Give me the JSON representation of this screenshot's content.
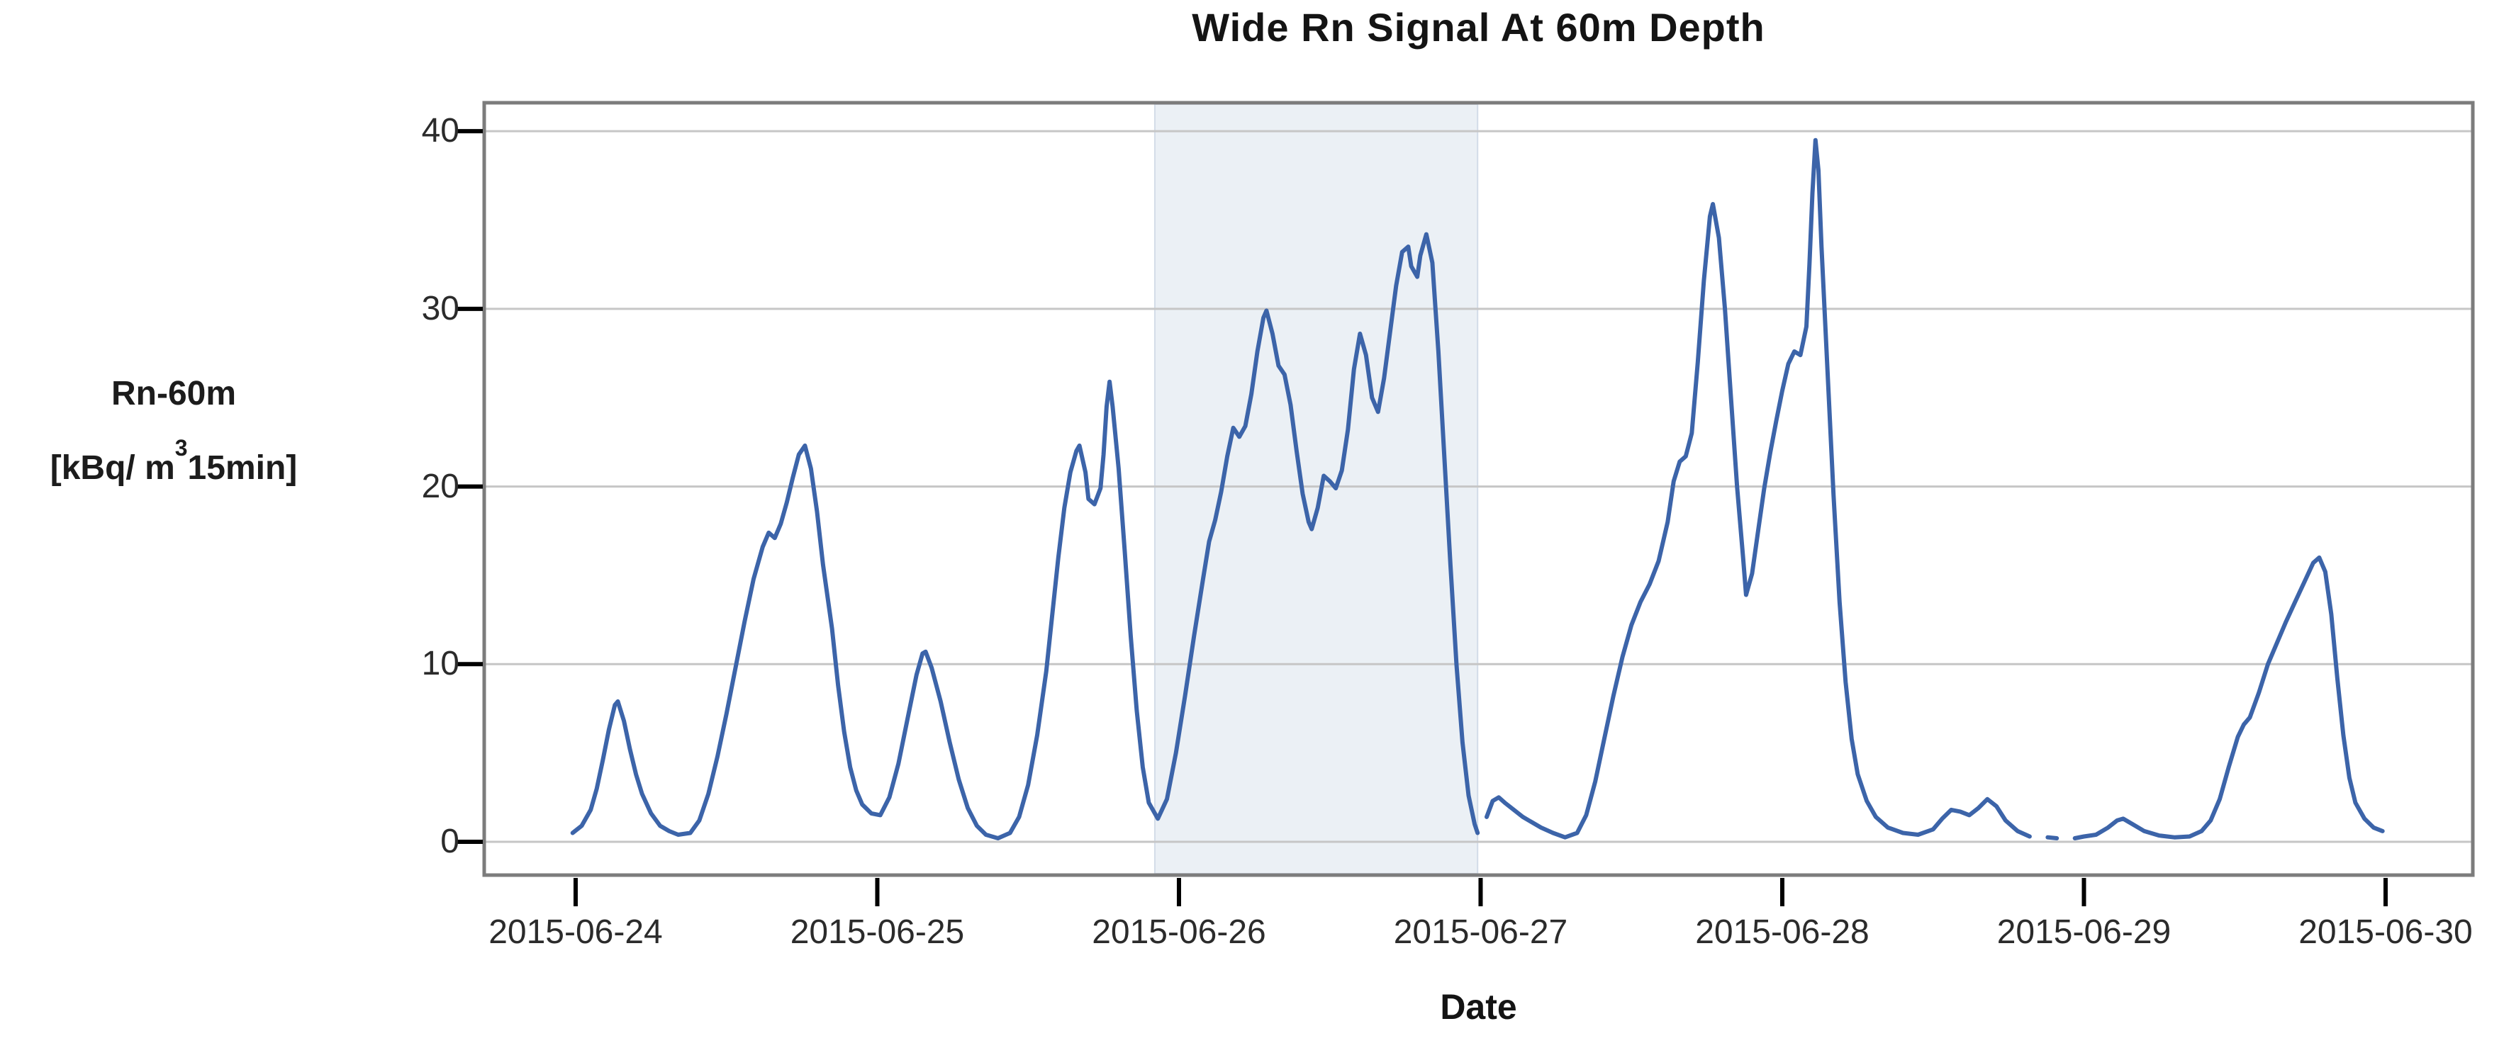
{
  "page": {
    "background": "#ffffff"
  },
  "chart": {
    "title": "Wide Rn Signal At 60m Depth",
    "x_axis_label": "Date",
    "y_axis_label_line1": "Rn-60m",
    "y_axis_unit_prefix": "[kBq/ m",
    "y_axis_unit_sup": "3",
    "y_axis_unit_suffix": "15min]"
  },
  "chart_data": {
    "type": "line",
    "title": "Wide Rn Signal At 60m Depth",
    "xlabel": "Date",
    "ylabel": "Rn-60m [kBq/ m^3 15min]",
    "x_unit": "days after 2015-06-24 00:00",
    "x_range_days": [
      -0.3031,
      6.2891
    ],
    "ylim": [
      -1.875,
      41.602
    ],
    "y_ticks": [
      0,
      10,
      20,
      30,
      40
    ],
    "x_ticks": [
      {
        "day": 0,
        "label": "2015-06-24"
      },
      {
        "day": 1,
        "label": "2015-06-25"
      },
      {
        "day": 2,
        "label": "2015-06-26"
      },
      {
        "day": 3,
        "label": "2015-06-27"
      },
      {
        "day": 4,
        "label": "2015-06-28"
      },
      {
        "day": 5,
        "label": "2015-06-29"
      },
      {
        "day": 6,
        "label": "2015-06-30"
      }
    ],
    "grid": "horizontal",
    "legend": "none",
    "highlight_band": {
      "from_day": 1.92,
      "to_day": 2.99,
      "fill": "#ebf0f5",
      "edge": "#d3dce8"
    },
    "colors": {
      "line": "#3c64a9",
      "grid": "#c6c6c6",
      "plot_border": "#7c7c7c",
      "tick": "#000000",
      "text": "#2b2b2b"
    },
    "series": [
      {
        "name": "Rn-60m",
        "color": "#3c64a9",
        "points": [
          [
            -0.01,
            0.5
          ],
          [
            0.02,
            0.9
          ],
          [
            0.05,
            1.8
          ],
          [
            0.07,
            3.0
          ],
          [
            0.09,
            4.6
          ],
          [
            0.11,
            6.3
          ],
          [
            0.13,
            7.7
          ],
          [
            0.14,
            7.9
          ],
          [
            0.16,
            6.8
          ],
          [
            0.18,
            5.2
          ],
          [
            0.2,
            3.8
          ],
          [
            0.22,
            2.7
          ],
          [
            0.25,
            1.6
          ],
          [
            0.28,
            0.9
          ],
          [
            0.31,
            0.6
          ],
          [
            0.34,
            0.4
          ],
          [
            0.38,
            0.5
          ],
          [
            0.41,
            1.2
          ],
          [
            0.44,
            2.7
          ],
          [
            0.47,
            4.8
          ],
          [
            0.5,
            7.2
          ],
          [
            0.53,
            9.8
          ],
          [
            0.56,
            12.4
          ],
          [
            0.59,
            14.8
          ],
          [
            0.62,
            16.6
          ],
          [
            0.64,
            17.4
          ],
          [
            0.66,
            17.1
          ],
          [
            0.68,
            17.9
          ],
          [
            0.7,
            19.1
          ],
          [
            0.72,
            20.5
          ],
          [
            0.74,
            21.8
          ],
          [
            0.76,
            22.3
          ],
          [
            0.78,
            21.0
          ],
          [
            0.8,
            18.6
          ],
          [
            0.82,
            15.6
          ],
          [
            0.85,
            12.0
          ],
          [
            0.87,
            8.8
          ],
          [
            0.89,
            6.2
          ],
          [
            0.91,
            4.2
          ],
          [
            0.93,
            2.9
          ],
          [
            0.95,
            2.1
          ],
          [
            0.98,
            1.6
          ],
          [
            1.01,
            1.5
          ],
          [
            1.04,
            2.5
          ],
          [
            1.07,
            4.4
          ],
          [
            1.1,
            6.9
          ],
          [
            1.13,
            9.4
          ],
          [
            1.15,
            10.6
          ],
          [
            1.16,
            10.7
          ],
          [
            1.18,
            9.8
          ],
          [
            1.21,
            7.9
          ],
          [
            1.24,
            5.6
          ],
          [
            1.27,
            3.5
          ],
          [
            1.3,
            1.9
          ],
          [
            1.33,
            0.9
          ],
          [
            1.36,
            0.4
          ],
          [
            1.4,
            0.2
          ],
          [
            1.44,
            0.5
          ],
          [
            1.47,
            1.4
          ],
          [
            1.5,
            3.2
          ],
          [
            1.53,
            6.0
          ],
          [
            1.56,
            9.6
          ],
          [
            1.58,
            12.8
          ],
          [
            1.6,
            16.0
          ],
          [
            1.62,
            18.8
          ],
          [
            1.64,
            20.8
          ],
          [
            1.66,
            22.0
          ],
          [
            1.67,
            22.3
          ],
          [
            1.69,
            20.8
          ],
          [
            1.7,
            19.3
          ],
          [
            1.72,
            19.0
          ],
          [
            1.74,
            19.9
          ],
          [
            1.75,
            21.8
          ],
          [
            1.76,
            24.5
          ],
          [
            1.77,
            25.9
          ],
          [
            1.78,
            24.5
          ],
          [
            1.8,
            21.0
          ],
          [
            1.82,
            16.4
          ],
          [
            1.84,
            11.6
          ],
          [
            1.86,
            7.4
          ],
          [
            1.88,
            4.2
          ],
          [
            1.9,
            2.2
          ],
          [
            1.93,
            1.3
          ],
          [
            1.96,
            2.4
          ],
          [
            1.99,
            5.0
          ],
          [
            2.02,
            8.2
          ],
          [
            2.05,
            11.6
          ],
          [
            2.08,
            14.8
          ],
          [
            2.1,
            16.9
          ],
          [
            2.12,
            18.1
          ],
          [
            2.14,
            19.7
          ],
          [
            2.16,
            21.7
          ],
          [
            2.18,
            23.3
          ],
          [
            2.2,
            22.8
          ],
          [
            2.22,
            23.4
          ],
          [
            2.24,
            25.2
          ],
          [
            2.26,
            27.6
          ],
          [
            2.28,
            29.5
          ],
          [
            2.29,
            29.9
          ],
          [
            2.31,
            28.6
          ],
          [
            2.33,
            26.8
          ],
          [
            2.35,
            26.3
          ],
          [
            2.37,
            24.6
          ],
          [
            2.39,
            22.0
          ],
          [
            2.41,
            19.6
          ],
          [
            2.43,
            18.0
          ],
          [
            2.44,
            17.6
          ],
          [
            2.46,
            18.8
          ],
          [
            2.48,
            20.6
          ],
          [
            2.5,
            20.3
          ],
          [
            2.52,
            19.9
          ],
          [
            2.54,
            20.9
          ],
          [
            2.56,
            23.2
          ],
          [
            2.58,
            26.6
          ],
          [
            2.6,
            28.6
          ],
          [
            2.62,
            27.4
          ],
          [
            2.64,
            25.0
          ],
          [
            2.66,
            24.2
          ],
          [
            2.68,
            26.1
          ],
          [
            2.7,
            28.7
          ],
          [
            2.72,
            31.3
          ],
          [
            2.74,
            33.2
          ],
          [
            2.76,
            33.5
          ],
          [
            2.77,
            32.4
          ],
          [
            2.79,
            31.8
          ],
          [
            2.8,
            33.0
          ],
          [
            2.82,
            34.2
          ],
          [
            2.84,
            32.6
          ],
          [
            2.86,
            27.6
          ],
          [
            2.88,
            21.6
          ],
          [
            2.9,
            15.6
          ],
          [
            2.92,
            10.0
          ],
          [
            2.94,
            5.6
          ],
          [
            2.96,
            2.6
          ],
          [
            2.98,
            1.0
          ],
          [
            2.99,
            0.5
          ],
          [
            3.005,
            null
          ],
          [
            3.02,
            1.4
          ],
          [
            3.04,
            2.3
          ],
          [
            3.06,
            2.5
          ],
          [
            3.08,
            2.2
          ],
          [
            3.11,
            1.8
          ],
          [
            3.14,
            1.4
          ],
          [
            3.17,
            1.1
          ],
          [
            3.2,
            0.8
          ],
          [
            3.24,
            0.5
          ],
          [
            3.28,
            0.25
          ],
          [
            3.32,
            0.5
          ],
          [
            3.35,
            1.5
          ],
          [
            3.38,
            3.4
          ],
          [
            3.41,
            5.8
          ],
          [
            3.44,
            8.2
          ],
          [
            3.47,
            10.4
          ],
          [
            3.5,
            12.2
          ],
          [
            3.53,
            13.5
          ],
          [
            3.56,
            14.5
          ],
          [
            3.59,
            15.8
          ],
          [
            3.62,
            18.0
          ],
          [
            3.64,
            20.3
          ],
          [
            3.66,
            21.4
          ],
          [
            3.68,
            21.7
          ],
          [
            3.7,
            23.0
          ],
          [
            3.72,
            27.0
          ],
          [
            3.74,
            31.6
          ],
          [
            3.76,
            35.2
          ],
          [
            3.77,
            35.9
          ],
          [
            3.79,
            34.0
          ],
          [
            3.81,
            30.0
          ],
          [
            3.83,
            25.0
          ],
          [
            3.85,
            20.0
          ],
          [
            3.87,
            16.0
          ],
          [
            3.88,
            13.9
          ],
          [
            3.9,
            15.1
          ],
          [
            3.92,
            17.5
          ],
          [
            3.94,
            19.9
          ],
          [
            3.96,
            21.9
          ],
          [
            3.98,
            23.7
          ],
          [
            4.0,
            25.4
          ],
          [
            4.02,
            26.9
          ],
          [
            4.04,
            27.6
          ],
          [
            4.06,
            27.4
          ],
          [
            4.08,
            29.0
          ],
          [
            4.09,
            32.5
          ],
          [
            4.1,
            36.5
          ],
          [
            4.11,
            39.5
          ],
          [
            4.12,
            37.8
          ],
          [
            4.13,
            33.5
          ],
          [
            4.15,
            26.5
          ],
          [
            4.17,
            19.5
          ],
          [
            4.19,
            13.5
          ],
          [
            4.21,
            9.0
          ],
          [
            4.23,
            5.8
          ],
          [
            4.25,
            3.8
          ],
          [
            4.28,
            2.3
          ],
          [
            4.31,
            1.4
          ],
          [
            4.35,
            0.8
          ],
          [
            4.4,
            0.5
          ],
          [
            4.45,
            0.4
          ],
          [
            4.5,
            0.7
          ],
          [
            4.53,
            1.3
          ],
          [
            4.56,
            1.8
          ],
          [
            4.59,
            1.7
          ],
          [
            4.62,
            1.5
          ],
          [
            4.65,
            1.9
          ],
          [
            4.68,
            2.4
          ],
          [
            4.71,
            2.0
          ],
          [
            4.74,
            1.2
          ],
          [
            4.78,
            0.6
          ],
          [
            4.82,
            0.3
          ],
          [
            4.85,
            null
          ],
          [
            4.88,
            0.25
          ],
          [
            4.91,
            0.2
          ],
          [
            4.93,
            null
          ],
          [
            4.97,
            0.2
          ],
          [
            5.0,
            0.3
          ],
          [
            5.04,
            0.4
          ],
          [
            5.08,
            0.8
          ],
          [
            5.11,
            1.2
          ],
          [
            5.13,
            1.3
          ],
          [
            5.16,
            1.0
          ],
          [
            5.2,
            0.6
          ],
          [
            5.25,
            0.35
          ],
          [
            5.3,
            0.25
          ],
          [
            5.35,
            0.3
          ],
          [
            5.39,
            0.6
          ],
          [
            5.42,
            1.2
          ],
          [
            5.45,
            2.4
          ],
          [
            5.48,
            4.2
          ],
          [
            5.51,
            5.9
          ],
          [
            5.53,
            6.6
          ],
          [
            5.55,
            7.0
          ],
          [
            5.58,
            8.4
          ],
          [
            5.61,
            10.0
          ],
          [
            5.64,
            11.2
          ],
          [
            5.67,
            12.4
          ],
          [
            5.7,
            13.5
          ],
          [
            5.73,
            14.6
          ],
          [
            5.76,
            15.7
          ],
          [
            5.78,
            16.0
          ],
          [
            5.8,
            15.2
          ],
          [
            5.82,
            12.8
          ],
          [
            5.84,
            9.2
          ],
          [
            5.86,
            6.0
          ],
          [
            5.88,
            3.6
          ],
          [
            5.9,
            2.2
          ],
          [
            5.93,
            1.3
          ],
          [
            5.96,
            0.8
          ],
          [
            5.99,
            0.6
          ]
        ]
      }
    ]
  }
}
